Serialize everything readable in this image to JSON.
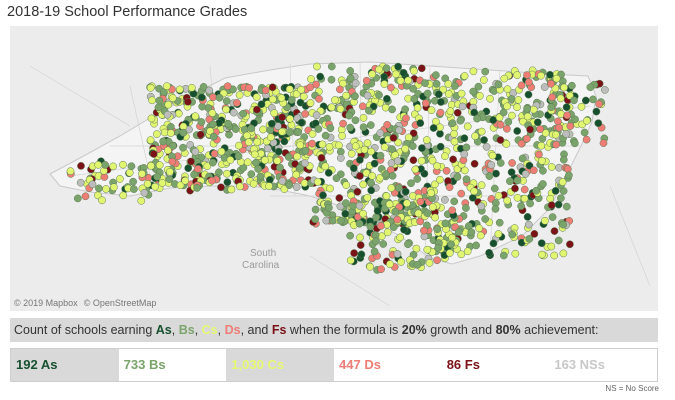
{
  "title": "2018-19 School Performance Grades",
  "map": {
    "labels": {
      "south_carolina_1": "South",
      "south_carolina_2": "Carolina"
    },
    "credits": [
      "© 2019 Mapbox",
      "© OpenStreetMap"
    ],
    "grade_colors": {
      "A": "#17502f",
      "B": "#7ba46c",
      "C": "#e2f571",
      "D": "#ee7d76",
      "F": "#7a1218",
      "NS": "#bdbdbd"
    }
  },
  "caption": {
    "prefix": "Count of schools earning ",
    "A": "As",
    "sep1": ", ",
    "B": "Bs",
    "sep2": ", ",
    "C": "Cs",
    "sep3": ", ",
    "D": "Ds",
    "sep4": ", and ",
    "F": "Fs",
    "middle": " when the formula is ",
    "growth": "20%",
    "growth_text": " growth and ",
    "achievement": "80%",
    "achievement_text": " achievement:"
  },
  "counts": [
    {
      "grade": "A",
      "label": "192 As",
      "bg": "#d9d9d9",
      "fg": "#17502f"
    },
    {
      "grade": "B",
      "label": "733 Bs",
      "bg": "#ffffff",
      "fg": "#7ba46c"
    },
    {
      "grade": "C",
      "label": "1,030 Cs",
      "bg": "#d9d9d9",
      "fg": "#e6f870"
    },
    {
      "grade": "D",
      "label": "447 Ds",
      "bg": "#ffffff",
      "fg": "#ee7d76"
    },
    {
      "grade": "F",
      "label": "86 Fs",
      "bg": "#ffffff",
      "fg": "#7a1218"
    },
    {
      "grade": "NS",
      "label": "163 NSs",
      "bg": "#ffffff",
      "fg": "#c8c8c8"
    }
  ],
  "note": "NS = No Score"
}
